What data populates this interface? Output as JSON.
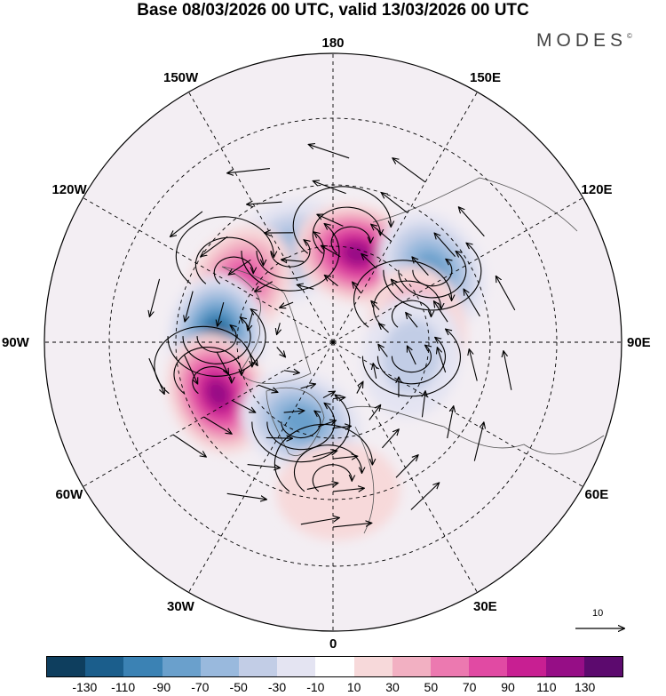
{
  "title": "Base 08/03/2026 00 UTC, valid 13/03/2026 00 UTC",
  "brand": "MODES",
  "brand_mark": "©",
  "longitude_labels": {
    "lon_180": "180",
    "lon_150e": "150E",
    "lon_120e": "120E",
    "lon_90e": "90E",
    "lon_60e": "60E",
    "lon_30e": "30E",
    "lon_0": "0",
    "lon_30w": "30W",
    "lon_60w": "60W",
    "lon_90w": "90W",
    "lon_120w": "120W",
    "lon_150w": "150W"
  },
  "reference_vector_label": "10",
  "colorbar": {
    "colors": [
      "#0e3e5e",
      "#1b5e8c",
      "#3b82b4",
      "#6aa0cc",
      "#99b9dd",
      "#c2cde6",
      "#e4e4f2",
      "#ffffff",
      "#f7d9da",
      "#f2b0c2",
      "#ec79b0",
      "#e14aa3",
      "#c81f92",
      "#960e86",
      "#5c0a6e"
    ],
    "tick_labels": [
      "-130",
      "-110",
      "-90",
      "-70",
      "-50",
      "-30",
      "-10",
      "10",
      "30",
      "50",
      "70",
      "90",
      "110",
      "130"
    ]
  },
  "anomaly_centers": [
    {
      "name": "center-150w-negative",
      "lon": -155,
      "lat": 55,
      "value": -60
    },
    {
      "name": "center-160e-positive",
      "lon": 165,
      "lat": 58,
      "value": 110
    },
    {
      "name": "center-125e-negative",
      "lon": 126,
      "lat": 48,
      "value": -80
    },
    {
      "name": "center-120w-positive",
      "lon": -122,
      "lat": 52,
      "value": 80
    },
    {
      "name": "center-90w-negative",
      "lon": -93,
      "lat": 50,
      "value": -120
    },
    {
      "name": "center-70w-positive",
      "lon": -66,
      "lat": 47,
      "value": 110
    },
    {
      "name": "center-25w-negative",
      "lon": -22,
      "lat": 60,
      "value": -70
    },
    {
      "name": "center-100e-positive",
      "lon": 100,
      "lat": 60,
      "value": 50
    },
    {
      "name": "center-80e-negative",
      "lon": 80,
      "lat": 62,
      "value": -40
    },
    {
      "name": "center-0-positive",
      "lon": 2,
      "lat": 40,
      "value": 20
    }
  ]
}
